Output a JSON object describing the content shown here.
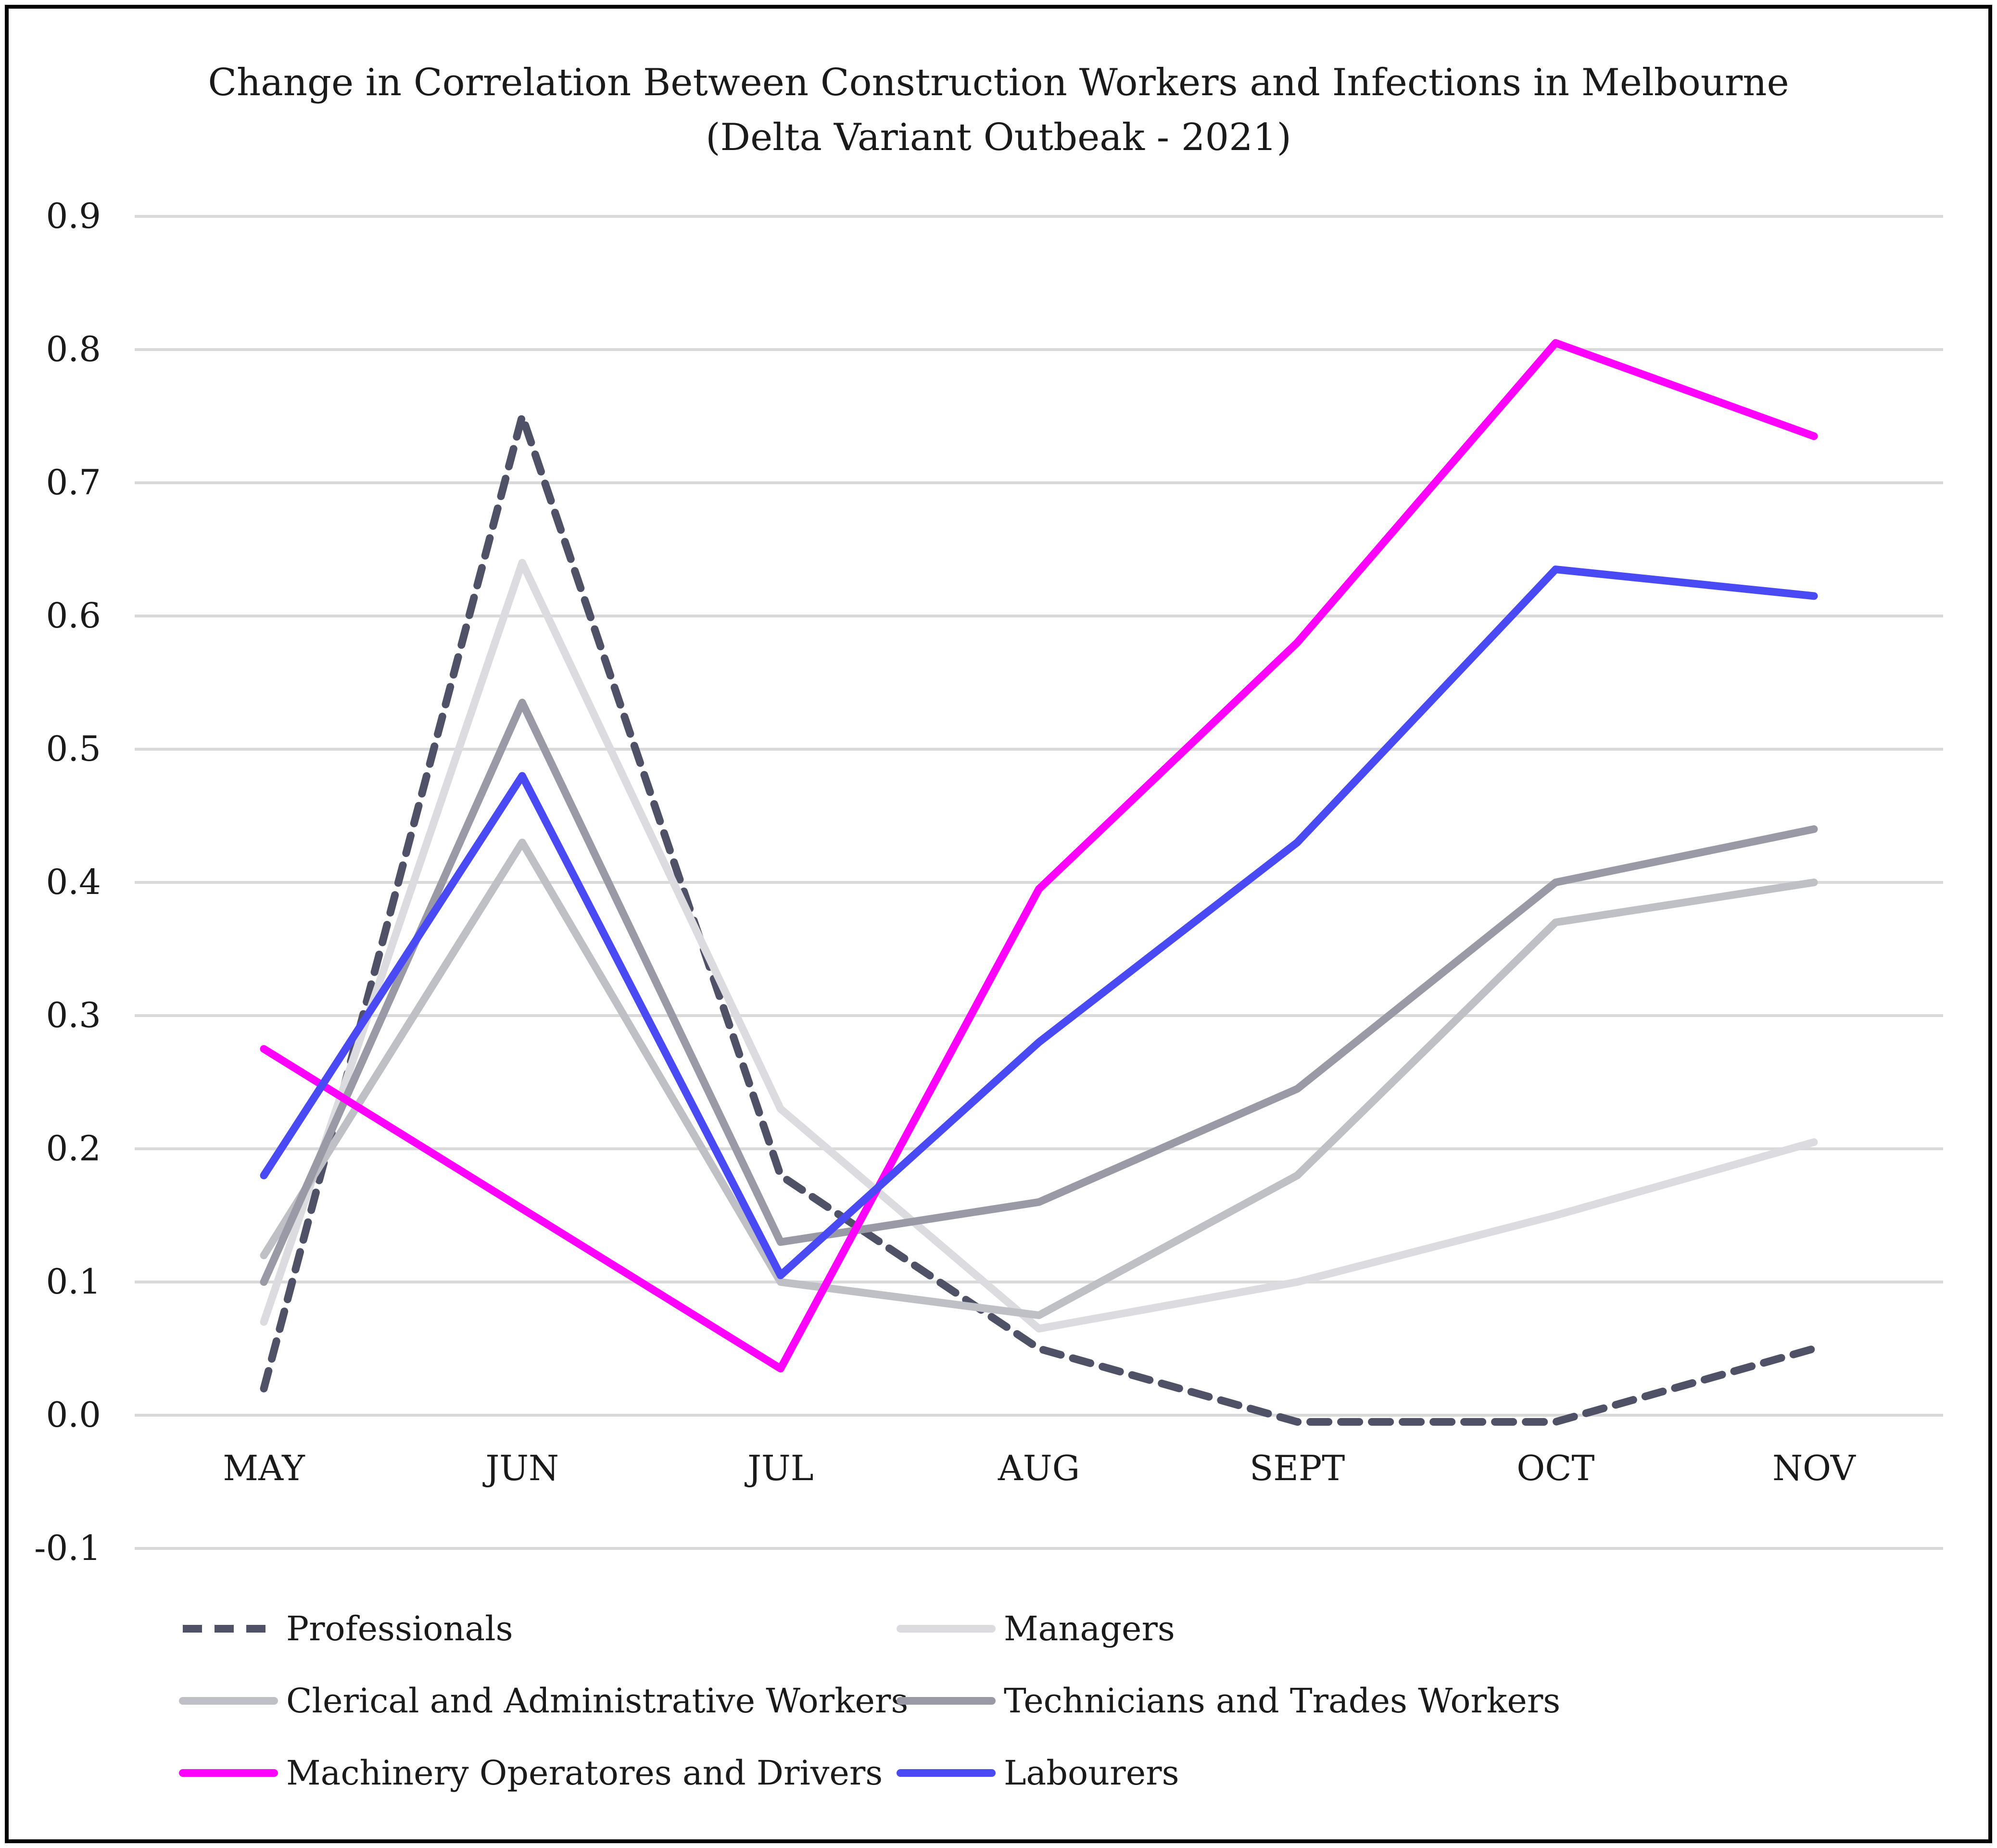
{
  "chart_data": {
    "type": "line",
    "title": "Change in Correlation Between Construction Workers and Infections in Melbourne",
    "subtitle": "(Delta Variant Outbeak - 2021)",
    "xlabel": "",
    "ylabel": "",
    "categories": [
      "MAY",
      "JUN",
      "JUL",
      "AUG",
      "SEPT",
      "OCT",
      "NOV"
    ],
    "yticks": [
      "0.9",
      "0.8",
      "0.7",
      "0.6",
      "0.5",
      "0.4",
      "0.3",
      "0.2",
      "0.1",
      "0.0",
      "-0.1"
    ],
    "ylim": [
      -0.1,
      0.9
    ],
    "grid": true,
    "legend_position": "bottom",
    "series": [
      {
        "name": "Professionals",
        "color": "#4f5266",
        "dashed": true,
        "values": [
          0.02,
          0.75,
          0.18,
          0.05,
          -0.005,
          -0.005,
          0.05
        ]
      },
      {
        "name": "Managers",
        "color": "#dcdce0",
        "dashed": false,
        "values": [
          0.07,
          0.64,
          0.23,
          0.065,
          0.1,
          0.15,
          0.205
        ]
      },
      {
        "name": "Clerical and Administrative Workers",
        "color": "#bfbfc6",
        "dashed": false,
        "values": [
          0.12,
          0.43,
          0.1,
          0.075,
          0.18,
          0.37,
          0.4
        ]
      },
      {
        "name": "Technicians and Trades Workers",
        "color": "#9a9aa6",
        "dashed": false,
        "values": [
          0.1,
          0.535,
          0.13,
          0.16,
          0.245,
          0.4,
          0.44
        ]
      },
      {
        "name": "Machinery Operatores and Drivers",
        "color": "#ff00ff",
        "dashed": false,
        "values": [
          0.275,
          0.155,
          0.035,
          0.395,
          0.58,
          0.805,
          0.735
        ]
      },
      {
        "name": "Labourers",
        "color": "#4a4af5",
        "dashed": false,
        "values": [
          0.18,
          0.48,
          0.105,
          0.28,
          0.43,
          0.635,
          0.615
        ]
      }
    ]
  }
}
